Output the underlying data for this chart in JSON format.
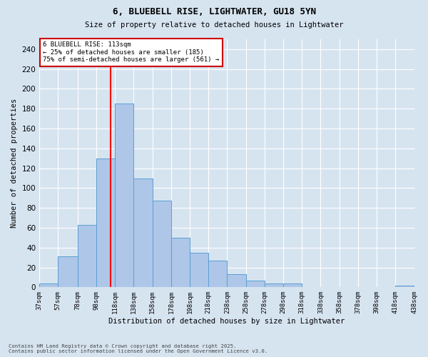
{
  "title_line1": "6, BLUEBELL RISE, LIGHTWATER, GU18 5YN",
  "title_line2": "Size of property relative to detached houses in Lightwater",
  "xlabel": "Distribution of detached houses by size in Lightwater",
  "ylabel": "Number of detached properties",
  "bar_edges": [
    37,
    57,
    78,
    98,
    118,
    138,
    158,
    178,
    198,
    218,
    238,
    258,
    278,
    298,
    318,
    338,
    358,
    378,
    398,
    418,
    438
  ],
  "bar_heights": [
    4,
    31,
    63,
    130,
    185,
    110,
    87,
    50,
    35,
    27,
    13,
    7,
    4,
    4,
    0,
    0,
    0,
    0,
    0,
    2
  ],
  "bar_color": "#aec6e8",
  "bar_edge_color": "#5a9fd4",
  "red_line_x": 113,
  "ylim": [
    0,
    250
  ],
  "yticks": [
    0,
    20,
    40,
    60,
    80,
    100,
    120,
    140,
    160,
    180,
    200,
    220,
    240
  ],
  "background_color": "#d6e4f0",
  "grid_color": "#ffffff",
  "annotation_title": "6 BLUEBELL RISE: 113sqm",
  "annotation_line2": "← 25% of detached houses are smaller (185)",
  "annotation_line3": "75% of semi-detached houses are larger (561) →",
  "annotation_box_facecolor": "#ffffff",
  "annotation_box_edgecolor": "#cc0000",
  "footer_line1": "Contains HM Land Registry data © Crown copyright and database right 2025.",
  "footer_line2": "Contains public sector information licensed under the Open Government Licence v3.0."
}
